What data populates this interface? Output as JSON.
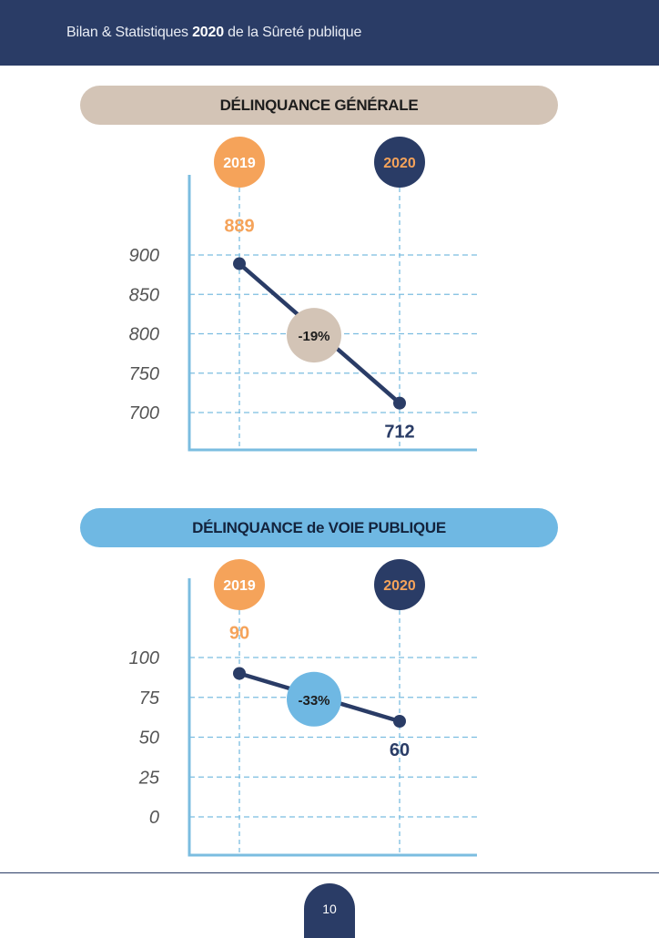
{
  "header": {
    "title_before": "Bilan & Statistiques ",
    "title_bold": "2020",
    "title_after": " de la Sûreté publique"
  },
  "colors": {
    "navy": "#2a3c66",
    "orange": "#f5a35a",
    "beige": "#d3c4b6",
    "blue": "#6fb8e3",
    "grid": "#7bbde0"
  },
  "chart_data": [
    {
      "type": "line",
      "title": "DÉLINQUANCE GÉNÉRALE",
      "categories": [
        "2019",
        "2020"
      ],
      "values": [
        889,
        712
      ],
      "value_labels": [
        "889",
        "712"
      ],
      "change_label": "-19%",
      "yticks": [
        "900",
        "850",
        "800",
        "750",
        "700"
      ],
      "ytick_values": [
        900,
        850,
        800,
        750,
        700
      ],
      "ylim": [
        700,
        900
      ],
      "grid": true
    },
    {
      "type": "line",
      "title": "DÉLINQUANCE de VOIE PUBLIQUE",
      "categories": [
        "2019",
        "2020"
      ],
      "values": [
        90,
        60
      ],
      "value_labels": [
        "90",
        "60"
      ],
      "change_label": "-33%",
      "yticks": [
        "100",
        "75",
        "50",
        "25",
        "0"
      ],
      "ytick_values": [
        100,
        75,
        50,
        25,
        0
      ],
      "ylim": [
        0,
        100
      ],
      "grid": true
    }
  ],
  "footer": {
    "page_number": "10"
  }
}
